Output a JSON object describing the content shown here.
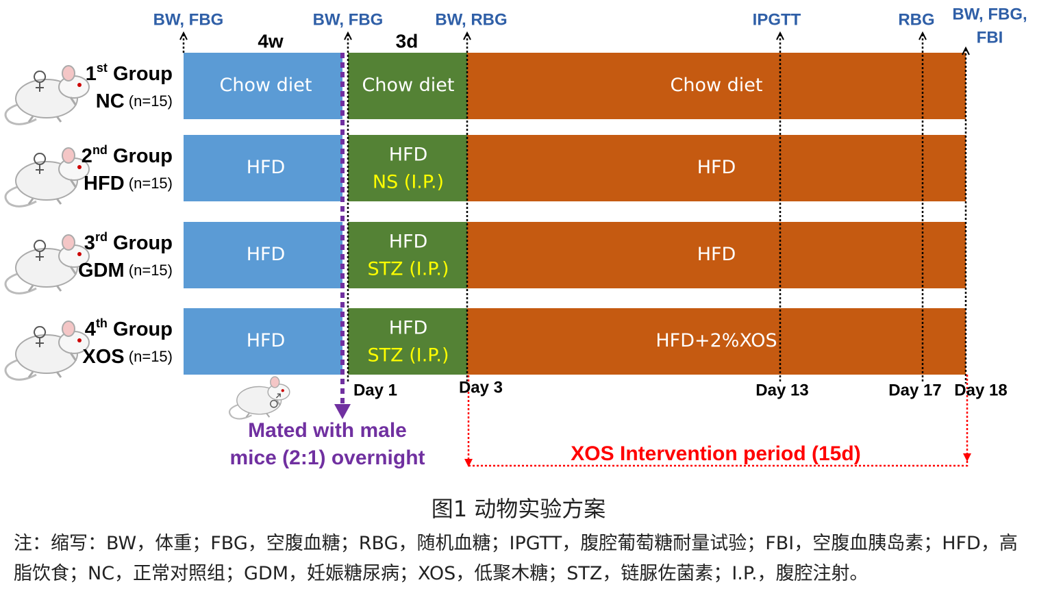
{
  "timepoints": [
    "BW, FBG",
    "BW, FBG",
    "BW, RBG",
    "IPGTT",
    "RBG"
  ],
  "final_timepoint": [
    "BW, FBG,",
    "FBI"
  ],
  "durations": [
    "4w",
    "3d"
  ],
  "groups": [
    {
      "ordinal": "1",
      "suffix": "st",
      "label": "Group",
      "name": "NC",
      "n": "(n=15)",
      "phase1": "Chow diet",
      "phase2": [
        "Chow diet"
      ],
      "phase3": "Chow diet"
    },
    {
      "ordinal": "2",
      "suffix": "nd",
      "label": "Group",
      "name": "HFD",
      "n": "(n=15)",
      "phase1": "HFD",
      "phase2": [
        "HFD",
        "NS (I.P.)"
      ],
      "phase3": "HFD"
    },
    {
      "ordinal": "3",
      "suffix": "rd",
      "label": "Group",
      "name": "GDM",
      "n": "(n=15)",
      "phase1": "HFD",
      "phase2": [
        "HFD",
        "STZ (I.P.)"
      ],
      "phase3": "HFD"
    },
    {
      "ordinal": "4",
      "suffix": "th",
      "label": "Group",
      "name": "XOS",
      "n": "(n=15)",
      "phase1": "HFD",
      "phase2": [
        "HFD",
        "STZ (I.P.)"
      ],
      "phase3": "HFD+2%XOS"
    }
  ],
  "days": [
    "Day 1",
    "Day 3",
    "Day 13",
    "Day 17",
    "Day 18"
  ],
  "mating_note": [
    "Mated with male",
    "mice (2:1) overnight"
  ],
  "intervention": "XOS Intervention period (15d)",
  "caption": "图1 动物实验方案",
  "note": "注：缩写：BW，体重；FBG，空腹血糖；RBG，随机血糖；IPGTT，腹腔葡萄糖耐量试验；FBI，空腹血胰岛素；HFD，高脂饮食；NC，正常对照组；GDM，妊娠糖尿病；XOS，低聚木糖；STZ，链脲佐菌素；I.P.，腹腔注射。"
}
